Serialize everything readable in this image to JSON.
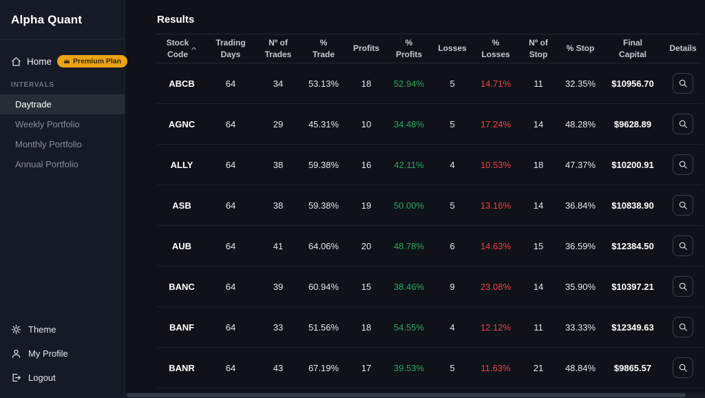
{
  "app": {
    "title": "Alpha Quant"
  },
  "colors": {
    "green": "#2aa862",
    "red": "#ef4444",
    "accent": "#eba416"
  },
  "sidebar": {
    "home": {
      "label": "Home",
      "badge": "Premium Plan"
    },
    "section_label": "INTERVALS",
    "items": [
      {
        "label": "Daytrade",
        "active": true
      },
      {
        "label": "Weekly Portfolio",
        "active": false
      },
      {
        "label": "Monthly Portfolio",
        "active": false
      },
      {
        "label": "Annual Portfolio",
        "active": false
      }
    ],
    "footer": [
      {
        "label": "Theme",
        "icon": "theme-sun-icon"
      },
      {
        "label": "My Profile",
        "icon": "user-icon"
      },
      {
        "label": "Logout",
        "icon": "logout-icon"
      }
    ]
  },
  "main": {
    "title": "Results",
    "table": {
      "columns": [
        {
          "key": "stock",
          "label": "Stock\nCode",
          "sortable": true
        },
        {
          "key": "trading_days",
          "label": "Trading\nDays",
          "sortable": false
        },
        {
          "key": "trades",
          "label": "Nº of\nTrades",
          "sortable": false
        },
        {
          "key": "pct_trade",
          "label": "%\nTrade",
          "sortable": false
        },
        {
          "key": "profits",
          "label": "Profits",
          "sortable": false
        },
        {
          "key": "pct_profits",
          "label": "%\nProfits",
          "sortable": false
        },
        {
          "key": "losses",
          "label": "Losses",
          "sortable": false
        },
        {
          "key": "pct_losses",
          "label": "%\nLosses",
          "sortable": false
        },
        {
          "key": "stops",
          "label": "Nº of\nStop",
          "sortable": false
        },
        {
          "key": "pct_stop",
          "label": "% Stop",
          "sortable": false
        },
        {
          "key": "final_capital",
          "label": "Final\nCapital",
          "sortable": false
        },
        {
          "key": "details",
          "label": "Details",
          "sortable": false
        }
      ],
      "rows": [
        {
          "stock": "ABCB",
          "trading_days": "64",
          "trades": "34",
          "pct_trade": "53.13%",
          "profits": "18",
          "pct_profits": "52.94%",
          "losses": "5",
          "pct_losses": "14.71%",
          "stops": "11",
          "pct_stop": "32.35%",
          "final_capital": "$10956.70"
        },
        {
          "stock": "AGNC",
          "trading_days": "64",
          "trades": "29",
          "pct_trade": "45.31%",
          "profits": "10",
          "pct_profits": "34.48%",
          "losses": "5",
          "pct_losses": "17.24%",
          "stops": "14",
          "pct_stop": "48.28%",
          "final_capital": "$9628.89"
        },
        {
          "stock": "ALLY",
          "trading_days": "64",
          "trades": "38",
          "pct_trade": "59.38%",
          "profits": "16",
          "pct_profits": "42.11%",
          "losses": "4",
          "pct_losses": "10.53%",
          "stops": "18",
          "pct_stop": "47.37%",
          "final_capital": "$10200.91"
        },
        {
          "stock": "ASB",
          "trading_days": "64",
          "trades": "38",
          "pct_trade": "59.38%",
          "profits": "19",
          "pct_profits": "50.00%",
          "losses": "5",
          "pct_losses": "13.16%",
          "stops": "14",
          "pct_stop": "36.84%",
          "final_capital": "$10838.90"
        },
        {
          "stock": "AUB",
          "trading_days": "64",
          "trades": "41",
          "pct_trade": "64.06%",
          "profits": "20",
          "pct_profits": "48.78%",
          "losses": "6",
          "pct_losses": "14.63%",
          "stops": "15",
          "pct_stop": "36.59%",
          "final_capital": "$12384.50"
        },
        {
          "stock": "BANC",
          "trading_days": "64",
          "trades": "39",
          "pct_trade": "60.94%",
          "profits": "15",
          "pct_profits": "38.46%",
          "losses": "9",
          "pct_losses": "23.08%",
          "stops": "14",
          "pct_stop": "35.90%",
          "final_capital": "$10397.21"
        },
        {
          "stock": "BANF",
          "trading_days": "64",
          "trades": "33",
          "pct_trade": "51.56%",
          "profits": "18",
          "pct_profits": "54.55%",
          "losses": "4",
          "pct_losses": "12.12%",
          "stops": "11",
          "pct_stop": "33.33%",
          "final_capital": "$12349.63"
        },
        {
          "stock": "BANR",
          "trading_days": "64",
          "trades": "43",
          "pct_trade": "67.19%",
          "profits": "17",
          "pct_profits": "39.53%",
          "losses": "5",
          "pct_losses": "11.63%",
          "stops": "21",
          "pct_stop": "48.84%",
          "final_capital": "$9865.57"
        }
      ]
    }
  }
}
